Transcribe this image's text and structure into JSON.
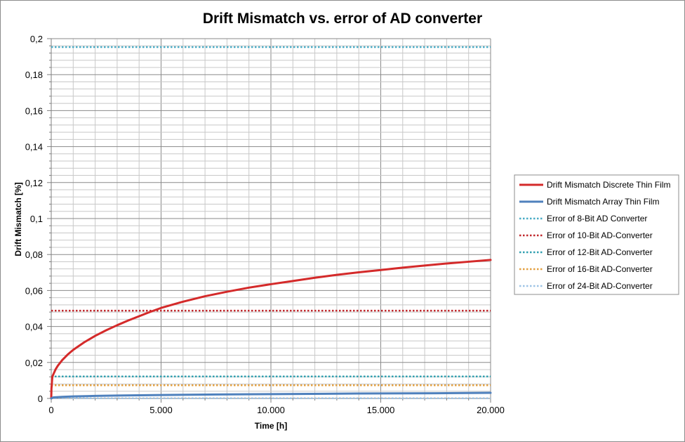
{
  "chart_data": {
    "type": "line",
    "title": "Drift Mismatch vs. error of AD converter",
    "xlabel": "Time [h]",
    "ylabel": "Drift Mismatch [%]",
    "xlim": [
      0,
      20000
    ],
    "ylim": [
      0,
      0.2
    ],
    "x_major_step": 5000,
    "x_minor_step": 1000,
    "y_major_step": 0.02,
    "y_minor_step": 0.004,
    "grid": true,
    "legend_position": "right",
    "x_tick_labels": [
      "0",
      "5.000",
      "10.000",
      "15.000",
      "20.000"
    ],
    "y_tick_labels": [
      "0",
      "0,02",
      "0,04",
      "0,06",
      "0,08",
      "0,1",
      "0,12",
      "0,14",
      "0,16",
      "0,18",
      "0,2"
    ],
    "series": [
      {
        "name": "Drift Mismatch Discrete Thin Film",
        "style": "solid",
        "color": "#d42a2a",
        "x": [
          0,
          10,
          50,
          100,
          200,
          300,
          500,
          750,
          1000,
          1500,
          2000,
          2500,
          3000,
          3500,
          4000,
          4500,
          5000,
          6000,
          7000,
          8000,
          9000,
          10000,
          11000,
          12000,
          13000,
          14000,
          15000,
          16000,
          17000,
          18000,
          19000,
          20000
        ],
        "values": [
          0,
          0.0054,
          0.0121,
          0.0135,
          0.0162,
          0.0182,
          0.0213,
          0.0244,
          0.027,
          0.0312,
          0.0348,
          0.0379,
          0.0407,
          0.0433,
          0.0457,
          0.0481,
          0.0503,
          0.0538,
          0.0568,
          0.0593,
          0.0616,
          0.0635,
          0.0653,
          0.0671,
          0.0687,
          0.0701,
          0.0714,
          0.0727,
          0.0739,
          0.075,
          0.076,
          0.077
        ]
      },
      {
        "name": "Drift Mismatch Array Thin Film",
        "style": "solid",
        "color": "#4f81bd",
        "x": [
          0,
          100,
          500,
          1000,
          2000,
          3000,
          5000,
          7500,
          10000,
          12500,
          15000,
          17500,
          20000
        ],
        "values": [
          0,
          0.0006,
          0.0009,
          0.0011,
          0.0014,
          0.0016,
          0.0019,
          0.0022,
          0.0024,
          0.0026,
          0.0028,
          0.0029,
          0.0031
        ]
      },
      {
        "name": "Error of 8-Bit AD Converter",
        "style": "dotted",
        "color": "#4bacc6",
        "x": [
          0,
          20000
        ],
        "values": [
          0.1953,
          0.1953
        ]
      },
      {
        "name": "Error of 10-Bit AD-Converter",
        "style": "dotted",
        "color": "#c0282c",
        "x": [
          0,
          20000
        ],
        "values": [
          0.0488,
          0.0488
        ]
      },
      {
        "name": "Error of 12-Bit AD-Converter",
        "style": "dotted",
        "color": "#31a0b0",
        "x": [
          0,
          20000
        ],
        "values": [
          0.0122,
          0.0122
        ]
      },
      {
        "name": "Error of 16-Bit AD-Converter",
        "style": "dotted",
        "color": "#e3a041",
        "x": [
          0,
          20000
        ],
        "values": [
          0.0073,
          0.0073
        ]
      },
      {
        "name": "Error of 24-Bit AD-Converter",
        "style": "dotted",
        "color": "#9dc3e6",
        "x": [
          0,
          20000
        ],
        "values": [
          0.0001,
          0.0001
        ]
      }
    ]
  }
}
